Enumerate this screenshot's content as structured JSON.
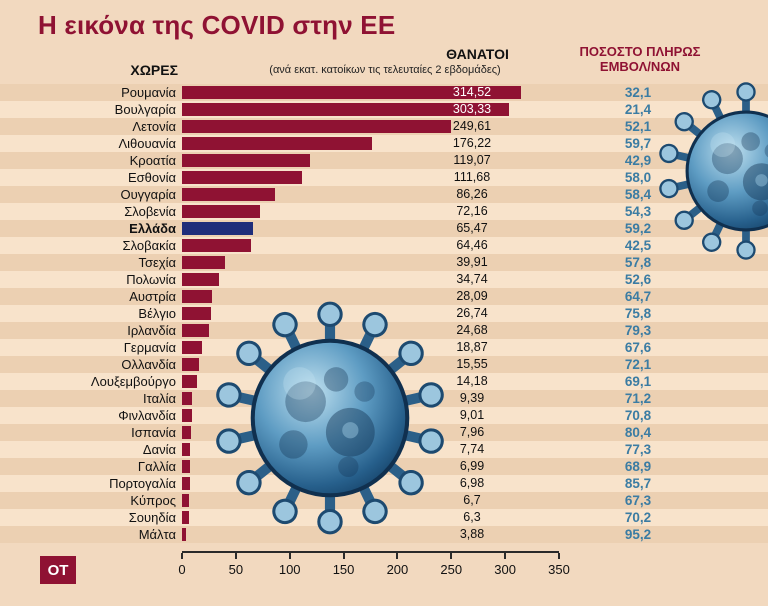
{
  "title": "Η εικόνα της COVID στην ΕΕ",
  "logo_text": "OT",
  "header": {
    "countries_label": "ΧΩΡΕΣ",
    "deaths_label": "ΘΑΝΑΤΟΙ",
    "deaths_sublabel": "(ανά εκατ. κατοίκων τις τελευταίες 2 εβδομάδες)",
    "vaccinated_label_line1": "ΠΟΣΟΣΤΟ ΠΛΗΡΩΣ",
    "vaccinated_label_line2": "ΕΜΒΟΛ/ΝΩΝ"
  },
  "colors": {
    "background": "#f2d9bf",
    "stripe_dark": "#ecd0b2",
    "stripe_light": "#f8e3cb",
    "bar": "#8f1233",
    "bar_highlight": "#1f2d7a",
    "accent_maroon": "#8f1233",
    "vaccinated_text": "#3b7ca3"
  },
  "chart_data": {
    "type": "bar",
    "orientation": "horizontal",
    "title": "Η εικόνα της COVID στην ΕΕ",
    "categories": [
      "Ρουμανία",
      "Βουλγαρία",
      "Λετονία",
      "Λιθουανία",
      "Κροατία",
      "Εσθονία",
      "Ουγγαρία",
      "Σλοβενία",
      "Ελλάδα",
      "Σλοβακία",
      "Τσεχία",
      "Πολωνία",
      "Αυστρία",
      "Βέλγιο",
      "Ιρλανδία",
      "Γερμανία",
      "Ολλανδία",
      "Λουξεμβούργο",
      "Ιταλία",
      "Φινλανδία",
      "Ισπανία",
      "Δανία",
      "Γαλλία",
      "Πορτογαλία",
      "Κύπρος",
      "Σουηδία",
      "Μάλτα"
    ],
    "series": [
      {
        "name": "ΘΑΝΑΤΟΙ (ανά εκατ. κατοίκων τις τελευταίες 2 εβδομάδες)",
        "values": [
          314.52,
          303.33,
          249.61,
          176.22,
          119.07,
          111.68,
          86.26,
          72.16,
          65.47,
          64.46,
          39.91,
          34.74,
          28.09,
          26.74,
          24.68,
          18.87,
          15.55,
          14.18,
          9.39,
          9.01,
          7.96,
          7.74,
          6.99,
          6.98,
          6.7,
          6.3,
          3.88
        ]
      },
      {
        "name": "ΠΟΣΟΣΤΟ ΠΛΗΡΩΣ ΕΜΒΟΛ/ΝΩΝ",
        "values": [
          32.1,
          21.4,
          52.1,
          59.7,
          42.9,
          58.0,
          58.4,
          54.3,
          59.2,
          42.5,
          57.8,
          52.6,
          64.7,
          75.8,
          79.3,
          67.6,
          72.1,
          69.1,
          71.2,
          70.8,
          80.4,
          77.3,
          68.9,
          85.7,
          67.3,
          70.2,
          95.2
        ]
      }
    ],
    "xlim": [
      0,
      350
    ],
    "x_ticks": [
      0,
      50,
      100,
      150,
      200,
      250,
      300,
      350
    ],
    "highlight_category": "Ελλάδα",
    "grid": false,
    "legend": false
  },
  "rows": [
    {
      "country": "Ρουμανία",
      "deaths": 314.52,
      "deaths_label": "314,52",
      "vaccinated_label": "32,1",
      "value_inside_bar": true,
      "highlight": false
    },
    {
      "country": "Βουλγαρία",
      "deaths": 303.33,
      "deaths_label": "303,33",
      "vaccinated_label": "21,4",
      "value_inside_bar": true,
      "highlight": false
    },
    {
      "country": "Λετονία",
      "deaths": 249.61,
      "deaths_label": "249,61",
      "vaccinated_label": "52,1",
      "value_inside_bar": false,
      "highlight": false
    },
    {
      "country": "Λιθουανία",
      "deaths": 176.22,
      "deaths_label": "176,22",
      "vaccinated_label": "59,7",
      "value_inside_bar": false,
      "highlight": false
    },
    {
      "country": "Κροατία",
      "deaths": 119.07,
      "deaths_label": "119,07",
      "vaccinated_label": "42,9",
      "value_inside_bar": false,
      "highlight": false
    },
    {
      "country": "Εσθονία",
      "deaths": 111.68,
      "deaths_label": "111,68",
      "vaccinated_label": "58,0",
      "value_inside_bar": false,
      "highlight": false
    },
    {
      "country": "Ουγγαρία",
      "deaths": 86.26,
      "deaths_label": "86,26",
      "vaccinated_label": "58,4",
      "value_inside_bar": false,
      "highlight": false
    },
    {
      "country": "Σλοβενία",
      "deaths": 72.16,
      "deaths_label": "72,16",
      "vaccinated_label": "54,3",
      "value_inside_bar": false,
      "highlight": false
    },
    {
      "country": "Ελλάδα",
      "deaths": 65.47,
      "deaths_label": "65,47",
      "vaccinated_label": "59,2",
      "value_inside_bar": false,
      "highlight": true
    },
    {
      "country": "Σλοβακία",
      "deaths": 64.46,
      "deaths_label": "64,46",
      "vaccinated_label": "42,5",
      "value_inside_bar": false,
      "highlight": false
    },
    {
      "country": "Τσεχία",
      "deaths": 39.91,
      "deaths_label": "39,91",
      "vaccinated_label": "57,8",
      "value_inside_bar": false,
      "highlight": false
    },
    {
      "country": "Πολωνία",
      "deaths": 34.74,
      "deaths_label": "34,74",
      "vaccinated_label": "52,6",
      "value_inside_bar": false,
      "highlight": false
    },
    {
      "country": "Αυστρία",
      "deaths": 28.09,
      "deaths_label": "28,09",
      "vaccinated_label": "64,7",
      "value_inside_bar": false,
      "highlight": false
    },
    {
      "country": "Βέλγιο",
      "deaths": 26.74,
      "deaths_label": "26,74",
      "vaccinated_label": "75,8",
      "value_inside_bar": false,
      "highlight": false
    },
    {
      "country": "Ιρλανδία",
      "deaths": 24.68,
      "deaths_label": "24,68",
      "vaccinated_label": "79,3",
      "value_inside_bar": false,
      "highlight": false
    },
    {
      "country": "Γερμανία",
      "deaths": 18.87,
      "deaths_label": "18,87",
      "vaccinated_label": "67,6",
      "value_inside_bar": false,
      "highlight": false
    },
    {
      "country": "Ολλανδία",
      "deaths": 15.55,
      "deaths_label": "15,55",
      "vaccinated_label": "72,1",
      "value_inside_bar": false,
      "highlight": false
    },
    {
      "country": "Λουξεμβούργο",
      "deaths": 14.18,
      "deaths_label": "14,18",
      "vaccinated_label": "69,1",
      "value_inside_bar": false,
      "highlight": false
    },
    {
      "country": "Ιταλία",
      "deaths": 9.39,
      "deaths_label": "9,39",
      "vaccinated_label": "71,2",
      "value_inside_bar": false,
      "highlight": false
    },
    {
      "country": "Φινλανδία",
      "deaths": 9.01,
      "deaths_label": "9,01",
      "vaccinated_label": "70,8",
      "value_inside_bar": false,
      "highlight": false
    },
    {
      "country": "Ισπανία",
      "deaths": 7.96,
      "deaths_label": "7,96",
      "vaccinated_label": "80,4",
      "value_inside_bar": false,
      "highlight": false
    },
    {
      "country": "Δανία",
      "deaths": 7.74,
      "deaths_label": "7,74",
      "vaccinated_label": "77,3",
      "value_inside_bar": false,
      "highlight": false
    },
    {
      "country": "Γαλλία",
      "deaths": 6.99,
      "deaths_label": "6,99",
      "vaccinated_label": "68,9",
      "value_inside_bar": false,
      "highlight": false
    },
    {
      "country": "Πορτογαλία",
      "deaths": 6.98,
      "deaths_label": "6,98",
      "vaccinated_label": "85,7",
      "value_inside_bar": false,
      "highlight": false
    },
    {
      "country": "Κύπρος",
      "deaths": 6.7,
      "deaths_label": "6,7",
      "vaccinated_label": "67,3",
      "value_inside_bar": false,
      "highlight": false
    },
    {
      "country": "Σουηδία",
      "deaths": 6.3,
      "deaths_label": "6,3",
      "vaccinated_label": "70,2",
      "value_inside_bar": false,
      "highlight": false
    },
    {
      "country": "Μάλτα",
      "deaths": 3.88,
      "deaths_label": "3,88",
      "vaccinated_label": "95,2",
      "value_inside_bar": false,
      "highlight": false
    }
  ]
}
